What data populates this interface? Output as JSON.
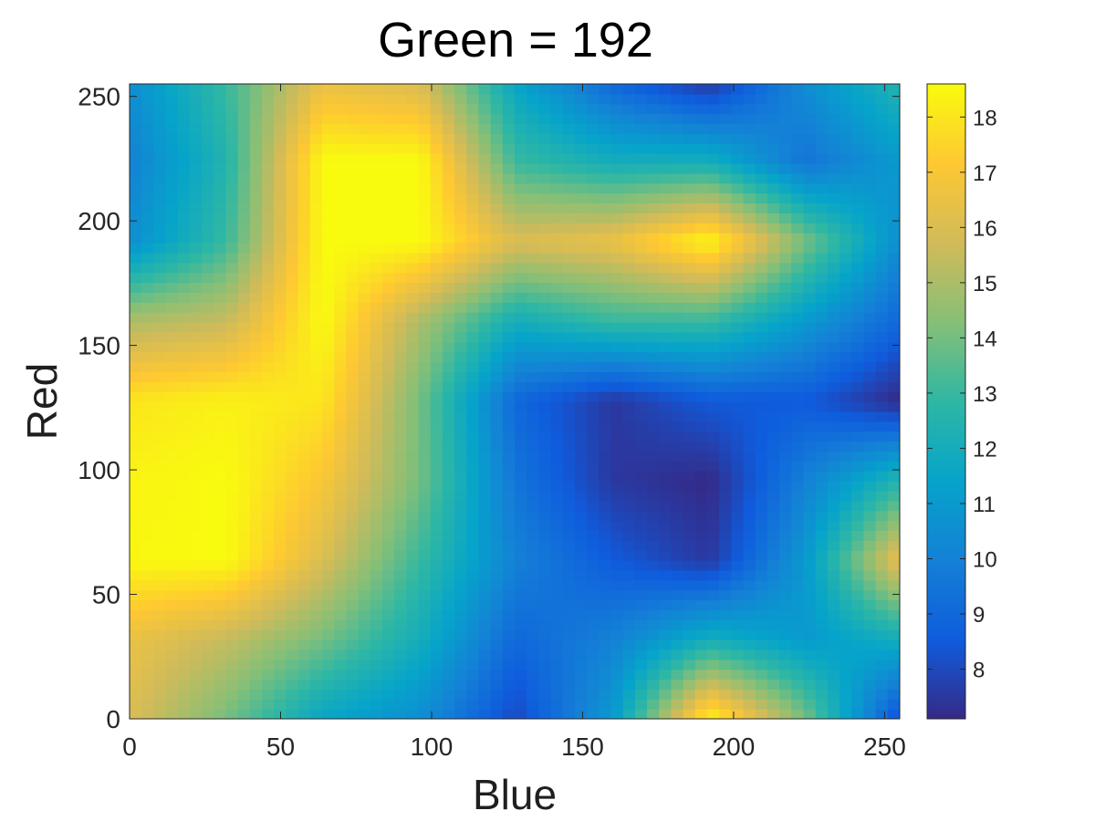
{
  "chart_data": {
    "type": "heatmap",
    "title": "Green = 192",
    "xlabel": "Blue",
    "ylabel": "Red",
    "x": [
      0,
      32,
      64,
      96,
      128,
      160,
      192,
      224,
      255
    ],
    "y": [
      0,
      32,
      64,
      96,
      128,
      160,
      192,
      224,
      255
    ],
    "xticks": [
      0,
      50,
      100,
      150,
      200,
      250
    ],
    "yticks": [
      0,
      50,
      100,
      150,
      200,
      250
    ],
    "xlim": [
      0,
      255
    ],
    "ylim": [
      0,
      255
    ],
    "colorbar": {
      "ticks": [
        8,
        9,
        10,
        11,
        12,
        13,
        14,
        15,
        16,
        17,
        18
      ],
      "range": [
        7.1,
        18.6
      ],
      "colormap": [
        "#352A87",
        "#0F5CDD",
        "#1481D6",
        "#06A4CA",
        "#2EB7A4",
        "#87BF77",
        "#D1BB59",
        "#FEC832",
        "#F9FB0E"
      ]
    },
    "z": [
      [
        16.0,
        14.0,
        11.5,
        10.5,
        8.0,
        11.0,
        18.5,
        14.0,
        8.0
      ],
      [
        16.5,
        15.5,
        14.0,
        12.0,
        9.0,
        10.0,
        12.0,
        11.0,
        12.0
      ],
      [
        18.5,
        18.6,
        16.0,
        13.0,
        10.0,
        8.5,
        7.5,
        11.0,
        16.5
      ],
      [
        18.4,
        18.6,
        17.0,
        14.0,
        9.5,
        7.5,
        7.1,
        10.0,
        12.5
      ],
      [
        18.0,
        18.3,
        18.0,
        14.0,
        9.0,
        7.5,
        8.5,
        8.5,
        7.1
      ],
      [
        15.0,
        15.5,
        18.6,
        15.0,
        12.0,
        13.0,
        13.0,
        11.0,
        9.0
      ],
      [
        10.5,
        13.0,
        18.6,
        18.6,
        16.0,
        16.5,
        18.5,
        14.0,
        10.5
      ],
      [
        10.0,
        12.5,
        18.6,
        18.6,
        13.0,
        12.0,
        12.0,
        9.5,
        11.0
      ],
      [
        10.5,
        13.0,
        16.5,
        16.0,
        11.5,
        9.0,
        7.5,
        10.5,
        12.5
      ]
    ]
  }
}
